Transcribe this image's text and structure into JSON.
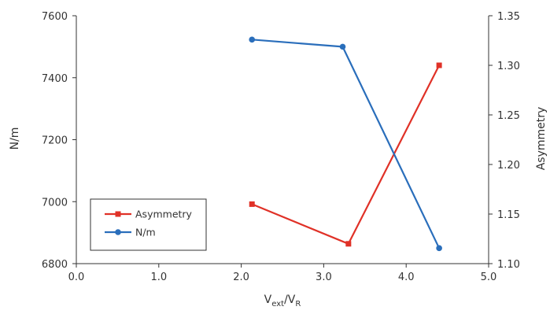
{
  "chart_data": {
    "type": "line",
    "xlabel": {
      "main": "V",
      "sub1": "ext",
      "sep": "/V",
      "sub2": "R"
    },
    "ylabel_left": "N/m",
    "ylabel_right": "Asymmetry",
    "xlim": [
      0,
      5
    ],
    "ylim_left": [
      6800,
      7600
    ],
    "ylim_right": [
      1.1,
      1.35
    ],
    "x_ticks": [
      "0.0",
      "1.0",
      "2.0",
      "3.0",
      "4.0",
      "5.0"
    ],
    "y_left_ticks": [
      "6800",
      "7000",
      "7200",
      "7400",
      "7600"
    ],
    "y_right_ticks": [
      "1.10",
      "1.15",
      "1.20",
      "1.25",
      "1.30",
      "1.35"
    ],
    "grid": false,
    "legend_position": "lower-left",
    "series": [
      {
        "name": "Asymmetry",
        "axis": "right",
        "color": "#e03127",
        "marker": "square",
        "x": [
          2.13,
          3.3,
          4.4
        ],
        "y": [
          1.16,
          1.12,
          1.3
        ]
      },
      {
        "name": "N/m",
        "axis": "left",
        "color": "#2a6ebb",
        "marker": "circle",
        "x": [
          2.13,
          3.23,
          4.4
        ],
        "y": [
          7523,
          7500,
          6850
        ]
      }
    ]
  }
}
